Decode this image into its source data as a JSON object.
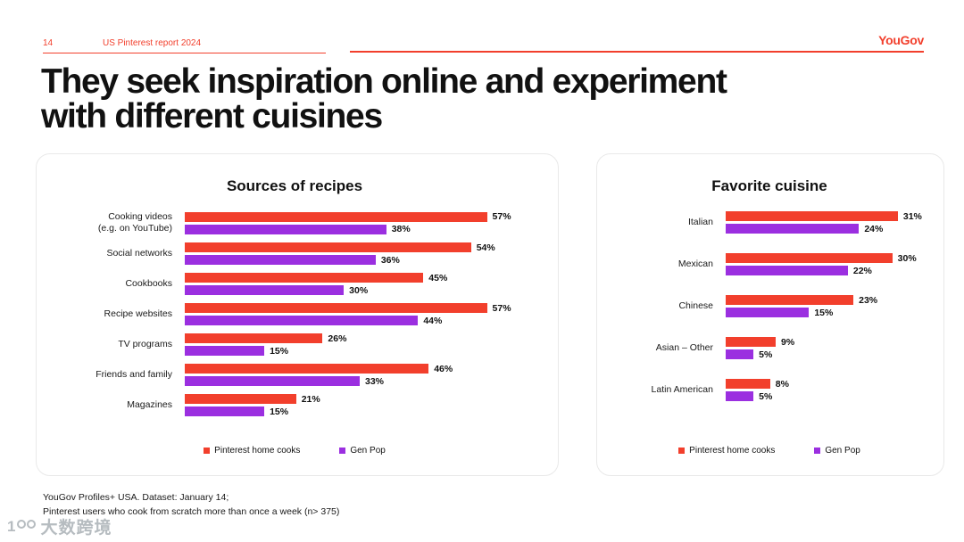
{
  "header": {
    "page_number": "14",
    "report_title": "US Pinterest report 2024",
    "brand": "YouGov"
  },
  "title": {
    "line1": "They seek inspiration online and experiment",
    "line2": "with different cuisines"
  },
  "colors": {
    "accent": "#F23F2C",
    "series1": "#F23F2C",
    "series2": "#9B2FE0"
  },
  "legend": {
    "series1": "Pinterest home cooks",
    "series2": "Gen Pop"
  },
  "chart_data": [
    {
      "type": "bar",
      "orientation": "horizontal",
      "title": "Sources of recipes",
      "categories": [
        "Cooking videos\n(e.g. on YouTube)",
        "Social networks",
        "Cookbooks",
        "Recipe websites",
        "TV programs",
        "Friends and family",
        "Magazines"
      ],
      "series": [
        {
          "name": "Pinterest home cooks",
          "color": "#F23F2C",
          "values": [
            57,
            54,
            45,
            57,
            26,
            46,
            21
          ]
        },
        {
          "name": "Gen Pop",
          "color": "#9B2FE0",
          "values": [
            38,
            36,
            30,
            44,
            15,
            33,
            15
          ]
        }
      ],
      "value_suffix": "%",
      "xlim": [
        0,
        66
      ],
      "grid": false,
      "legend_position": "bottom"
    },
    {
      "type": "bar",
      "orientation": "horizontal",
      "title": "Favorite cuisine",
      "categories": [
        "Italian",
        "Mexican",
        "Chinese",
        "Asian – Other",
        "Latin American"
      ],
      "series": [
        {
          "name": "Pinterest home cooks",
          "color": "#F23F2C",
          "values": [
            31,
            30,
            23,
            9,
            8
          ]
        },
        {
          "name": "Gen Pop",
          "color": "#9B2FE0",
          "values": [
            24,
            22,
            15,
            5,
            5
          ]
        }
      ],
      "value_suffix": "%",
      "xlim": [
        0,
        36
      ],
      "grid": false,
      "legend_position": "bottom"
    }
  ],
  "footer": {
    "line1": "YouGov Profiles+ USA. Dataset: January 14;",
    "line2": "Pinterest users who cook from scratch more than once a week (n> 375)"
  },
  "watermark": {
    "text": "大数跨境"
  }
}
